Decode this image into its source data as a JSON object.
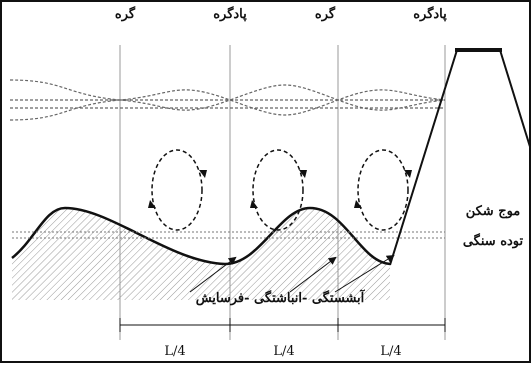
{
  "labels": {
    "top": [
      "گره",
      "پادگره",
      "گره",
      "پادگره"
    ],
    "breakwater": [
      "موج شکن",
      "توده سنگی"
    ],
    "process": "آبشستگی -انباشتگی -فرسایش",
    "spans": [
      "L/4",
      "L/4",
      "L/4"
    ]
  }
}
